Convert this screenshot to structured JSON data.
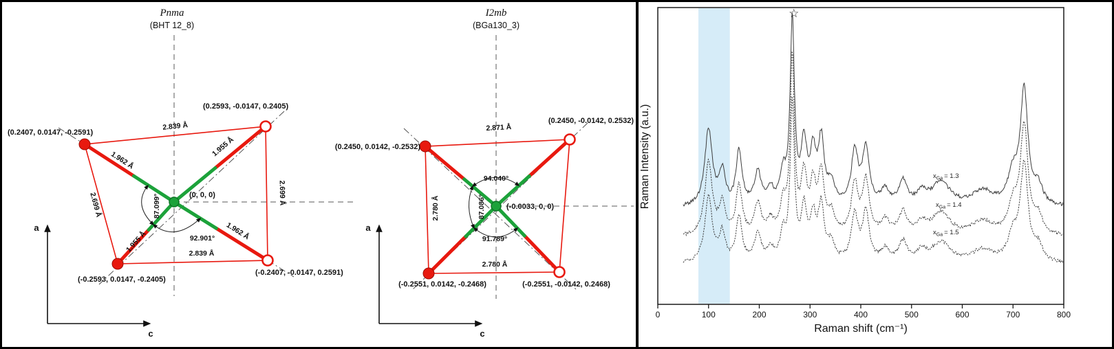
{
  "diagrams": [
    {
      "title": "Pnma",
      "subtitle": "(BHT 12_8)",
      "center_coord": "(0, 0, 0)",
      "coords": {
        "top_left": "(0.2407, 0.0147, -0.2591)",
        "top_right": "(0.2593, -0.0147, 0.2405)",
        "bottom_left": "(-0.2593, 0.0147, -0.2405)",
        "bottom_right": "(-0.2407, -0.0147, 0.2591)"
      },
      "edges": {
        "top": "2.839 Å",
        "right": "2.699 Å",
        "bottom": "2.839 Å",
        "left": "2.699 Å"
      },
      "bonds": {
        "top_left": "1.962 Å",
        "top_right": "1.955 Å",
        "bottom_left": "1.955 Å",
        "bottom_right": "1.962 Å"
      },
      "angles": {
        "left": "87.099°",
        "bottom": "92.901°"
      },
      "axes": {
        "vertical": "a",
        "horizontal": "c"
      }
    },
    {
      "title": "I2mb",
      "subtitle": "(BGa130_3)",
      "center_coord": "(-0.0033, 0, 0)",
      "coords": {
        "top_left": "(0.2450, 0.0142, -0.2532)",
        "top_right": "(0.2450, -0.0142, 0.2532)",
        "bottom_left": "(-0.2551, 0.0142, -0.2468)",
        "bottom_right": "(-0.2551, -0.0142, 0.2468)"
      },
      "edges": {
        "top": "2.871 Å",
        "left": "2.780 Å",
        "bottom": "2.780 Å"
      },
      "angles": {
        "top": "94.040°",
        "left": "87.086°",
        "bottom": "91.789°"
      },
      "axes": {
        "vertical": "a",
        "horizontal": "c"
      }
    }
  ],
  "colors": {
    "bond_red": "#e8190f",
    "bond_green": "#1ca23a",
    "highlight_band": "#d6ecf8",
    "spectrum_line": "#3d3d3d",
    "dashed_guide": "#909090"
  },
  "chart_data": {
    "type": "line",
    "xlabel": "Raman shift (cm⁻¹)",
    "ylabel": "Raman Intensity (a.u.)",
    "xlim": [
      0,
      800
    ],
    "x_ticks": [
      0,
      100,
      200,
      300,
      400,
      500,
      600,
      700,
      800
    ],
    "x_start": 50,
    "grid": false,
    "legend_position": "inline-right",
    "highlight_band_cm": [
      80,
      142
    ],
    "star_annotation": {
      "symbol": "☆",
      "x_cm": 268
    },
    "series": [
      {
        "name": "xGa = 1.3",
        "label_main": "x",
        "label_sub": "Ga",
        "label_rest": "= 1.3",
        "baseline_frac": 0.325,
        "scale": 1.0,
        "dotted": false
      },
      {
        "name": "xGa = 1.4",
        "label_main": "x",
        "label_sub": "Ga",
        "label_rest": "= 1.4",
        "baseline_frac": 0.225,
        "scale": 0.95,
        "dotted": true
      },
      {
        "name": "xGa = 1.5",
        "label_main": "x",
        "label_sub": "Ga",
        "label_rest": "= 1.5",
        "baseline_frac": 0.135,
        "scale": 0.85,
        "dotted": true
      }
    ],
    "peaks": [
      [
        100,
        0.26,
        9
      ],
      [
        127,
        0.11,
        7
      ],
      [
        160,
        0.18,
        7
      ],
      [
        197,
        0.11,
        8
      ],
      [
        222,
        0.05,
        8
      ],
      [
        247,
        0.1,
        7
      ],
      [
        265,
        0.62,
        5
      ],
      [
        288,
        0.2,
        7
      ],
      [
        306,
        0.16,
        7
      ],
      [
        322,
        0.21,
        7
      ],
      [
        342,
        0.07,
        8
      ],
      [
        388,
        0.18,
        8
      ],
      [
        410,
        0.19,
        8
      ],
      [
        448,
        0.05,
        10
      ],
      [
        483,
        0.08,
        10
      ],
      [
        520,
        0.04,
        12
      ],
      [
        558,
        0.08,
        22
      ],
      [
        640,
        0.05,
        25
      ],
      [
        700,
        0.1,
        12
      ],
      [
        722,
        0.38,
        9
      ],
      [
        750,
        0.06,
        10
      ]
    ]
  }
}
